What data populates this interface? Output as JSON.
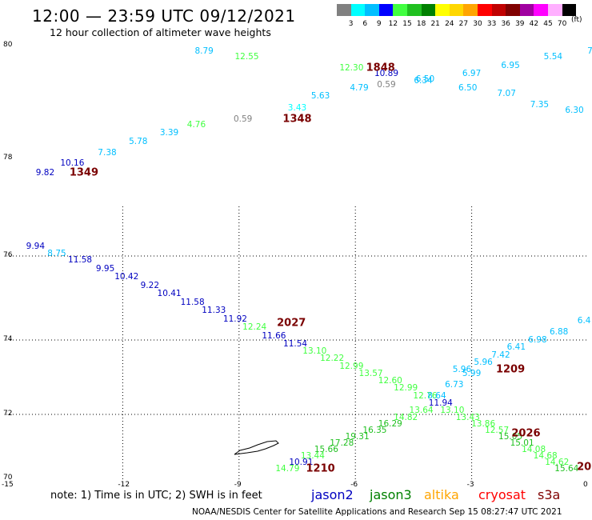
{
  "header": {
    "title": "12:00 — 23:59 UTC 09/12/2021",
    "subtitle": "12 hour collection of altimeter wave heights"
  },
  "legend": {
    "units": "(ft)",
    "bins": [
      {
        "label": "3",
        "color": "#808080"
      },
      {
        "label": "6",
        "color": "#00ffff"
      },
      {
        "label": "9",
        "color": "#00bfff"
      },
      {
        "label": "12",
        "color": "#0000ff"
      },
      {
        "label": "15",
        "color": "#40ff40"
      },
      {
        "label": "18",
        "color": "#20c020"
      },
      {
        "label": "21",
        "color": "#008000"
      },
      {
        "label": "24",
        "color": "#ffff00"
      },
      {
        "label": "27",
        "color": "#ffd700"
      },
      {
        "label": "30",
        "color": "#ffa500"
      },
      {
        "label": "33",
        "color": "#ff0000"
      },
      {
        "label": "36",
        "color": "#c00000"
      },
      {
        "label": "39",
        "color": "#800000"
      },
      {
        "label": "42",
        "color": "#a000a0"
      },
      {
        "label": "45",
        "color": "#ff00ff"
      },
      {
        "label": "70",
        "color": "#ffb0ff"
      },
      {
        "label": "",
        "color": "#000000"
      }
    ]
  },
  "axes": {
    "x_ticks": [
      "-15",
      "-12",
      "-9",
      "-6",
      "-3",
      "0"
    ],
    "y_ticks": [
      "80",
      "78",
      "76",
      "74",
      "72",
      "70"
    ]
  },
  "passes": [
    {
      "time": "1348",
      "points": [
        {
          "v": "9.82",
          "c": "#0000c0",
          "lon": -14.0,
          "lat": 77.7
        },
        {
          "v": "10.16",
          "c": "#0000c0",
          "lon": -13.3,
          "lat": 77.9
        },
        {
          "v": "7.38",
          "c": "#00bfff",
          "lon": -12.4,
          "lat": 78.1
        },
        {
          "v": "5.78",
          "c": "#00bfff",
          "lon": -11.6,
          "lat": 78.3
        },
        {
          "v": "3.39",
          "c": "#00bfff",
          "lon": -10.8,
          "lat": 78.45
        },
        {
          "v": "4.76",
          "c": "#40ff40",
          "lon": -10.1,
          "lat": 78.6
        },
        {
          "v": "0.59",
          "c": "#808080",
          "lon": -8.9,
          "lat": 78.7
        },
        {
          "v": "3.43",
          "c": "#00ffff",
          "lon": -7.5,
          "lat": 78.9
        },
        {
          "v": "5.63",
          "c": "#00bfff",
          "lon": -6.9,
          "lat": 79.1
        },
        {
          "v": "4.79",
          "c": "#00bfff",
          "lon": -5.9,
          "lat": 79.25
        },
        {
          "v": "8.79",
          "c": "#00bfff",
          "lon": -9.9,
          "lat": 79.9
        },
        {
          "v": "12.55",
          "c": "#40ff40",
          "lon": -8.8,
          "lat": 79.8
        }
      ],
      "tlon": -7.5,
      "tlat": 78.7
    },
    {
      "time": "1349",
      "points": [],
      "tlon": -13.0,
      "tlat": 77.7
    },
    {
      "time": "1848",
      "points": [
        {
          "v": "12.30",
          "c": "#40ff40",
          "lon": -6.1,
          "lat": 79.6
        },
        {
          "v": "10.89",
          "c": "#0000c0",
          "lon": -5.2,
          "lat": 79.5
        },
        {
          "v": "0.59",
          "c": "#808080",
          "lon": -5.2,
          "lat": 79.3
        },
        {
          "v": "6.50",
          "c": "#00bfff",
          "lon": -4.2,
          "lat": 79.4
        },
        {
          "v": "6.34",
          "c": "#00bfff",
          "lon": -4.25,
          "lat": 79.38
        },
        {
          "v": "6.97",
          "c": "#00bfff",
          "lon": -3.0,
          "lat": 79.5
        },
        {
          "v": "6.50",
          "c": "#00bfff",
          "lon": -3.1,
          "lat": 79.25
        },
        {
          "v": "6.95",
          "c": "#00bfff",
          "lon": -2.0,
          "lat": 79.65
        },
        {
          "v": "7.07",
          "c": "#00bfff",
          "lon": -2.1,
          "lat": 79.15
        },
        {
          "v": "5.54",
          "c": "#00bfff",
          "lon": -0.9,
          "lat": 79.8
        },
        {
          "v": "7.35",
          "c": "#00bfff",
          "lon": -1.25,
          "lat": 78.95
        },
        {
          "v": "6.30",
          "c": "#00bfff",
          "lon": -0.35,
          "lat": 78.85
        },
        {
          "v": "7",
          "c": "#00bfff",
          "lon": 0.05,
          "lat": 79.9
        }
      ],
      "tlon": -5.35,
      "tlat": 79.6
    },
    {
      "time": "2027",
      "points": [
        {
          "v": "9.94",
          "c": "#0000c0",
          "lon": -14.25,
          "lat": 76.2
        },
        {
          "v": "8.75",
          "c": "#00bfff",
          "lon": -13.7,
          "lat": 76.05
        },
        {
          "v": "11.58",
          "c": "#0000c0",
          "lon": -13.1,
          "lat": 75.9
        },
        {
          "v": "9.95",
          "c": "#0000c0",
          "lon": -12.45,
          "lat": 75.7
        },
        {
          "v": "10.42",
          "c": "#0000c0",
          "lon": -11.9,
          "lat": 75.5
        },
        {
          "v": "9.22",
          "c": "#0000c0",
          "lon": -11.3,
          "lat": 75.3
        },
        {
          "v": "10.41",
          "c": "#0000c0",
          "lon": -10.8,
          "lat": 75.1
        },
        {
          "v": "11.58",
          "c": "#0000c0",
          "lon": -10.2,
          "lat": 74.9
        },
        {
          "v": "11.33",
          "c": "#0000c0",
          "lon": -9.65,
          "lat": 74.7
        },
        {
          "v": "11.92",
          "c": "#0000c0",
          "lon": -9.1,
          "lat": 74.5
        },
        {
          "v": "12.24",
          "c": "#40ff40",
          "lon": -8.6,
          "lat": 74.3
        },
        {
          "v": "11.66",
          "c": "#0000c0",
          "lon": -8.1,
          "lat": 74.1
        },
        {
          "v": "11.54",
          "c": "#0000c0",
          "lon": -7.55,
          "lat": 73.9
        },
        {
          "v": "13.10",
          "c": "#40ff40",
          "lon": -7.05,
          "lat": 73.7
        },
        {
          "v": "12.22",
          "c": "#40ff40",
          "lon": -6.6,
          "lat": 73.5
        },
        {
          "v": "12.99",
          "c": "#40ff40",
          "lon": -6.1,
          "lat": 73.3
        },
        {
          "v": "13.57",
          "c": "#40ff40",
          "lon": -5.6,
          "lat": 73.1
        },
        {
          "v": "12.60",
          "c": "#40ff40",
          "lon": -5.1,
          "lat": 72.9
        },
        {
          "v": "12.99",
          "c": "#40ff40",
          "lon": -4.7,
          "lat": 72.7
        },
        {
          "v": "12.76",
          "c": "#40ff40",
          "lon": -4.2,
          "lat": 72.5
        },
        {
          "v": "11.94",
          "c": "#0000c0",
          "lon": -3.8,
          "lat": 72.3
        },
        {
          "v": "13.10",
          "c": "#40ff40",
          "lon": -3.5,
          "lat": 72.1
        },
        {
          "v": "13.43",
          "c": "#40ff40",
          "lon": -3.1,
          "lat": 71.9
        },
        {
          "v": "13.86",
          "c": "#40ff40",
          "lon": -2.7,
          "lat": 71.7
        },
        {
          "v": "12.57",
          "c": "#40ff40",
          "lon": -2.35,
          "lat": 71.5
        },
        {
          "v": "15.05",
          "c": "#20c020",
          "lon": -2.0,
          "lat": 71.3
        },
        {
          "v": "15.01",
          "c": "#20c020",
          "lon": -1.7,
          "lat": 71.1
        },
        {
          "v": "14.08",
          "c": "#40ff40",
          "lon": -1.4,
          "lat": 70.9
        },
        {
          "v": "14.68",
          "c": "#40ff40",
          "lon": -1.1,
          "lat": 70.7
        },
        {
          "v": "14.62",
          "c": "#40ff40",
          "lon": -0.8,
          "lat": 70.5
        },
        {
          "v": "15.64",
          "c": "#20c020",
          "lon": -0.55,
          "lat": 70.3
        }
      ],
      "tlon": -7.65,
      "tlat": 74.4
    },
    {
      "time": "2026",
      "points": [],
      "tlon": -1.6,
      "tlat": 71.4
    },
    {
      "time": "20",
      "points": [],
      "tlon": -0.1,
      "tlat": 70.35
    },
    {
      "time": "1209",
      "points": [
        {
          "v": "6.4",
          "c": "#00bfff",
          "lon": -0.1,
          "lat": 74.45
        },
        {
          "v": "6.88",
          "c": "#00bfff",
          "lon": -0.75,
          "lat": 74.2
        },
        {
          "v": "6.98",
          "c": "#00bfff",
          "lon": -1.3,
          "lat": 74.0
        },
        {
          "v": "6.41",
          "c": "#00bfff",
          "lon": -1.85,
          "lat": 73.8
        },
        {
          "v": "7.42",
          "c": "#00bfff",
          "lon": -2.25,
          "lat": 73.6
        },
        {
          "v": "5.96",
          "c": "#00bfff",
          "lon": -2.7,
          "lat": 73.4
        },
        {
          "v": "5.96",
          "c": "#00bfff",
          "lon": -3.25,
          "lat": 73.2
        },
        {
          "v": "5.99",
          "c": "#00bfff",
          "lon": -3.0,
          "lat": 73.1
        },
        {
          "v": "6.73",
          "c": "#00bfff",
          "lon": -3.45,
          "lat": 72.8
        },
        {
          "v": "8.64",
          "c": "#00bfff",
          "lon": -3.9,
          "lat": 72.5
        },
        {
          "v": "13.64",
          "c": "#40ff40",
          "lon": -4.3,
          "lat": 72.1
        },
        {
          "v": "14.82",
          "c": "#40ff40",
          "lon": -4.7,
          "lat": 71.9
        },
        {
          "v": "16.29",
          "c": "#20c020",
          "lon": -5.1,
          "lat": 71.7
        },
        {
          "v": "16.35",
          "c": "#20c020",
          "lon": -5.5,
          "lat": 71.5
        },
        {
          "v": "19.31",
          "c": "#20c020",
          "lon": -5.95,
          "lat": 71.3
        },
        {
          "v": "17.28",
          "c": "#20c020",
          "lon": -6.35,
          "lat": 71.1
        },
        {
          "v": "15.66",
          "c": "#20c020",
          "lon": -6.75,
          "lat": 70.9
        },
        {
          "v": "13.44",
          "c": "#40ff40",
          "lon": -7.1,
          "lat": 70.7
        },
        {
          "v": "10.91",
          "c": "#0000c0",
          "lon": -7.4,
          "lat": 70.5
        },
        {
          "v": "14.79",
          "c": "#40ff40",
          "lon": -7.75,
          "lat": 70.3
        }
      ],
      "tlon": -2.0,
      "tlat": 73.2
    },
    {
      "time": "1210",
      "points": [],
      "tlon": -6.9,
      "tlat": 70.3
    }
  ],
  "footer": {
    "note": "note:  1) Time is in UTC;  2) SWH is in feet",
    "satellites": [
      {
        "name": "jason2",
        "color": "#0000c0"
      },
      {
        "name": "jason3",
        "color": "#008000"
      },
      {
        "name": "altika",
        "color": "#ffa500"
      },
      {
        "name": "cryosat",
        "color": "#ff0000"
      },
      {
        "name": "s3a",
        "color": "#800000"
      }
    ],
    "credit": "NOAA/NESDIS Center for Satellite Applications and Research    Sep 15 08:27:47 UTC 2021"
  }
}
